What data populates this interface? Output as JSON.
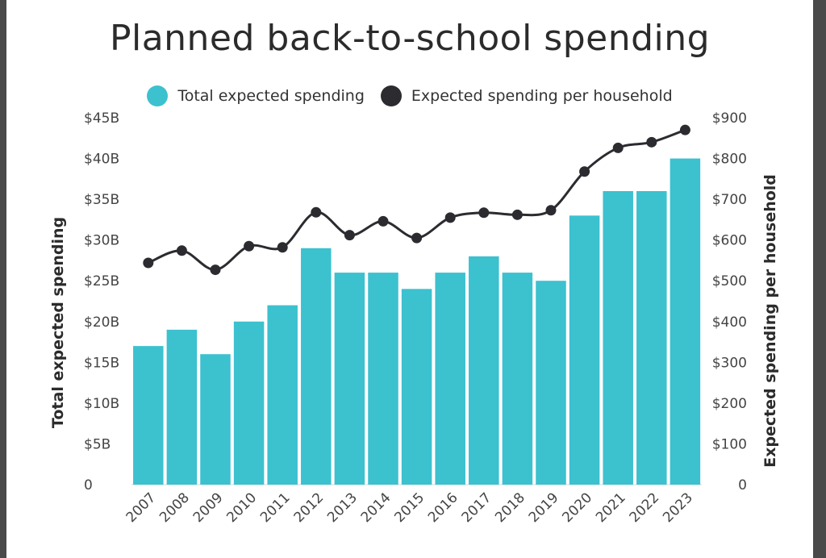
{
  "chart_data": {
    "type": "bar",
    "title": "Planned back-to-school spending",
    "legend": [
      {
        "label": "Total expected spending",
        "color": "#3cc1cf",
        "marker": "circle"
      },
      {
        "label": "Expected spending per household",
        "color": "#2b2b30",
        "marker": "circle"
      }
    ],
    "legend_position": "top",
    "categories": [
      "2007",
      "2008",
      "2009",
      "2010",
      "2011",
      "2012",
      "2013",
      "2014",
      "2015",
      "2016",
      "2017",
      "2018",
      "2019",
      "2020",
      "2021",
      "2022",
      "2023"
    ],
    "series": [
      {
        "name": "Total expected spending",
        "type": "bar",
        "axis": "left",
        "color": "#3cc1cf",
        "values": [
          17,
          19,
          16,
          20,
          22,
          29,
          26,
          26,
          24,
          26,
          28,
          26,
          25,
          33,
          36,
          36,
          40
        ]
      },
      {
        "name": "Expected spending per household",
        "type": "line",
        "axis": "right",
        "color": "#2b2b30",
        "values": [
          544,
          574,
          527,
          585,
          582,
          668,
          612,
          646,
          605,
          655,
          667,
          662,
          673,
          768,
          826,
          840,
          870
        ]
      }
    ],
    "y_left": {
      "label": "Total expected spending",
      "min": 0,
      "max": 45,
      "ticks": [
        {
          "value": 0,
          "label": "0"
        },
        {
          "value": 5,
          "label": "$5B"
        },
        {
          "value": 10,
          "label": "$10B"
        },
        {
          "value": 15,
          "label": "$15B"
        },
        {
          "value": 20,
          "label": "$20B"
        },
        {
          "value": 25,
          "label": "$25B"
        },
        {
          "value": 30,
          "label": "$30B"
        },
        {
          "value": 35,
          "label": "$35B"
        },
        {
          "value": 40,
          "label": "$40B"
        },
        {
          "value": 45,
          "label": "$45B"
        }
      ]
    },
    "y_right": {
      "label": "Expected spending per household",
      "min": 0,
      "max": 900,
      "ticks": [
        {
          "value": 0,
          "label": "0"
        },
        {
          "value": 100,
          "label": "$100"
        },
        {
          "value": 200,
          "label": "$200"
        },
        {
          "value": 300,
          "label": "$300"
        },
        {
          "value": 400,
          "label": "$400"
        },
        {
          "value": 500,
          "label": "$500"
        },
        {
          "value": 600,
          "label": "$600"
        },
        {
          "value": 700,
          "label": "$700"
        },
        {
          "value": 800,
          "label": "$800"
        },
        {
          "value": 900,
          "label": "$900"
        }
      ]
    },
    "grid": false
  }
}
